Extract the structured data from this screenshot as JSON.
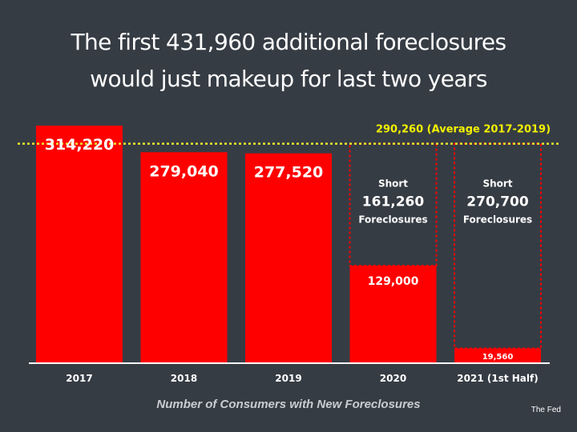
{
  "title": {
    "line1": "The first 431,960 additional foreclosures",
    "line2": "would just makeup for last two years"
  },
  "colors": {
    "background": "#363c44",
    "bar": "#ff0000",
    "dashed_outline": "#ff0000",
    "average_line": "#e6e62e",
    "average_label": "#f2f200",
    "baseline": "#ffffff"
  },
  "chart_data": {
    "type": "bar",
    "categories": [
      "2017",
      "2018",
      "2019",
      "2020",
      "2021 (1st Half)"
    ],
    "values": [
      314220,
      279040,
      277520,
      129000,
      19560
    ],
    "value_labels": [
      "314,220",
      "279,040",
      "277,520",
      "129,000",
      "19,560"
    ],
    "shortfall": [
      {
        "category": "2020",
        "label_top": "Short",
        "value": 161260,
        "value_label": "161,260",
        "label_bottom": "Foreclosures"
      },
      {
        "category": "2021 (1st Half)",
        "label_top": "Short",
        "value": 270700,
        "value_label": "270,700",
        "label_bottom": "Foreclosures"
      }
    ],
    "reference_line": {
      "value": 290260,
      "label": "290,260 (Average 2017-2019)",
      "style": "dotted"
    },
    "xlabel": "Number of Consumers with New Foreclosures",
    "ylabel": "",
    "ylim": [
      0,
      330000
    ],
    "grid": false,
    "legend": "none"
  },
  "source": "The Fed"
}
